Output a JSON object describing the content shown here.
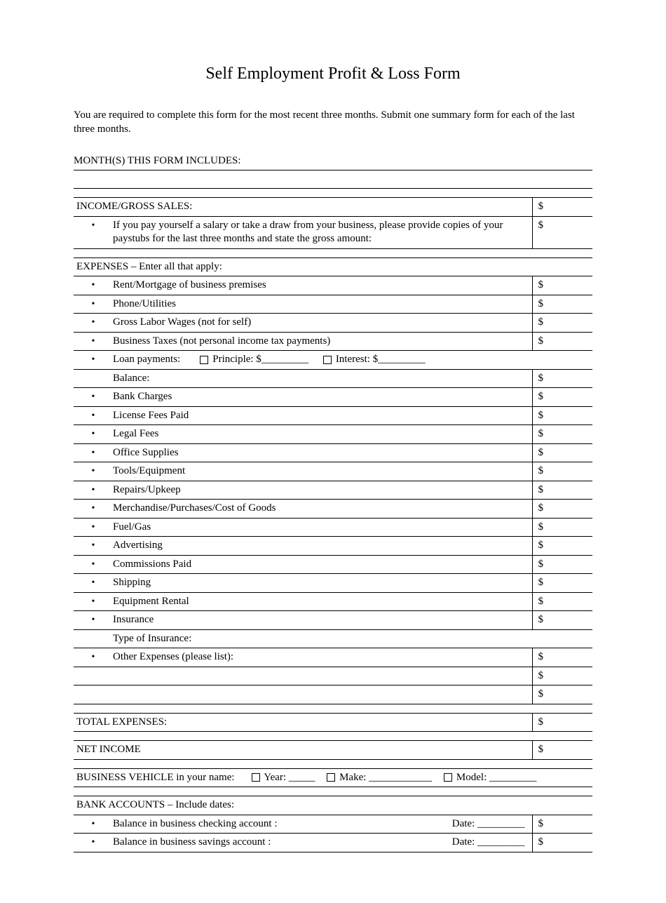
{
  "title": "Self Employment Profit & Loss Form",
  "intro": "You are required to complete this form for the most recent three months. Submit one summary form for each of the last three months.",
  "months_label": "MONTH(S) THIS FORM INCLUDES:",
  "income": {
    "header": "INCOME/GROSS SALES:",
    "note": "If you pay yourself a salary or take a draw from your business, please provide copies of your paystubs for the last three months and state the gross amount:"
  },
  "expenses": {
    "header": "EXPENSES – Enter all that apply:",
    "items": {
      "rent": "Rent/Mortgage of business premises",
      "phone": "Phone/Utilities",
      "labor": "Gross Labor Wages (not for self)",
      "taxes": "Business Taxes (not personal income tax payments)",
      "loan_label": "Loan payments:",
      "loan_principle": "Principle: $_________",
      "loan_interest": "Interest: $_________",
      "balance": "Balance:",
      "bank": "Bank Charges",
      "license": "License Fees Paid",
      "legal": "Legal Fees",
      "office": "Office Supplies",
      "tools": "Tools/Equipment",
      "repairs": "Repairs/Upkeep",
      "merch": "Merchandise/Purchases/Cost of Goods",
      "fuel": "Fuel/Gas",
      "advert": "Advertising",
      "commissions": "Commissions Paid",
      "shipping": "Shipping",
      "equip_rental": "Equipment Rental",
      "insurance": "Insurance",
      "insurance_type": "Type of Insurance:",
      "other": "Other Expenses (please list):"
    }
  },
  "totals": {
    "total_expenses": "TOTAL EXPENSES:",
    "net_income": "NET INCOME"
  },
  "vehicle": {
    "label": "BUSINESS VEHICLE in your name:",
    "year": "Year: _____",
    "make": "Make: ____________",
    "model": "Model: _________"
  },
  "bank": {
    "header": "BANK ACCOUNTS – Include dates:",
    "checking": "Balance in business checking account :",
    "savings": "Balance in business savings account :",
    "date": "Date: _________"
  },
  "currency": "$"
}
